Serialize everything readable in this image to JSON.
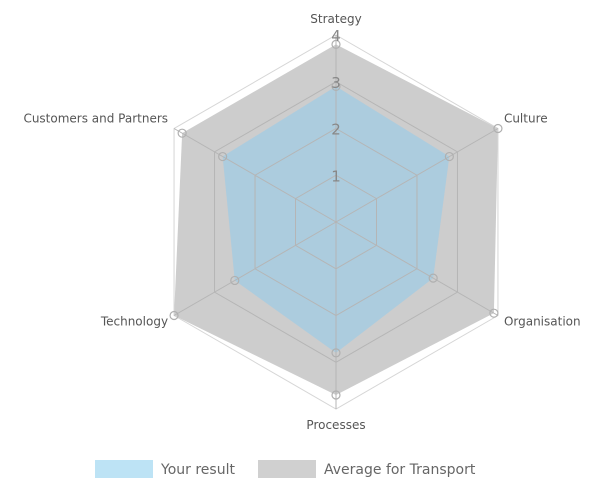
{
  "chart_data": {
    "type": "radar",
    "categories": [
      "Strategy",
      "Culture",
      "Organisation",
      "Processes",
      "Technology",
      "Customers and Partners"
    ],
    "rlim": [
      0,
      4
    ],
    "ticks": [
      "1",
      "2",
      "3",
      "4"
    ],
    "grid": true,
    "legend_position": "bottom",
    "series": [
      {
        "name": "Your result",
        "values": [
          2.9,
          2.8,
          2.4,
          2.8,
          2.5,
          2.8
        ],
        "color": "#a9cce0",
        "legend_color": "#bde3f5"
      },
      {
        "name": "Average for Transport",
        "values": [
          3.8,
          4.0,
          3.9,
          3.7,
          4.0,
          3.8
        ],
        "color": "#cdcdcd",
        "legend_color": "#d0d0d0"
      }
    ]
  }
}
